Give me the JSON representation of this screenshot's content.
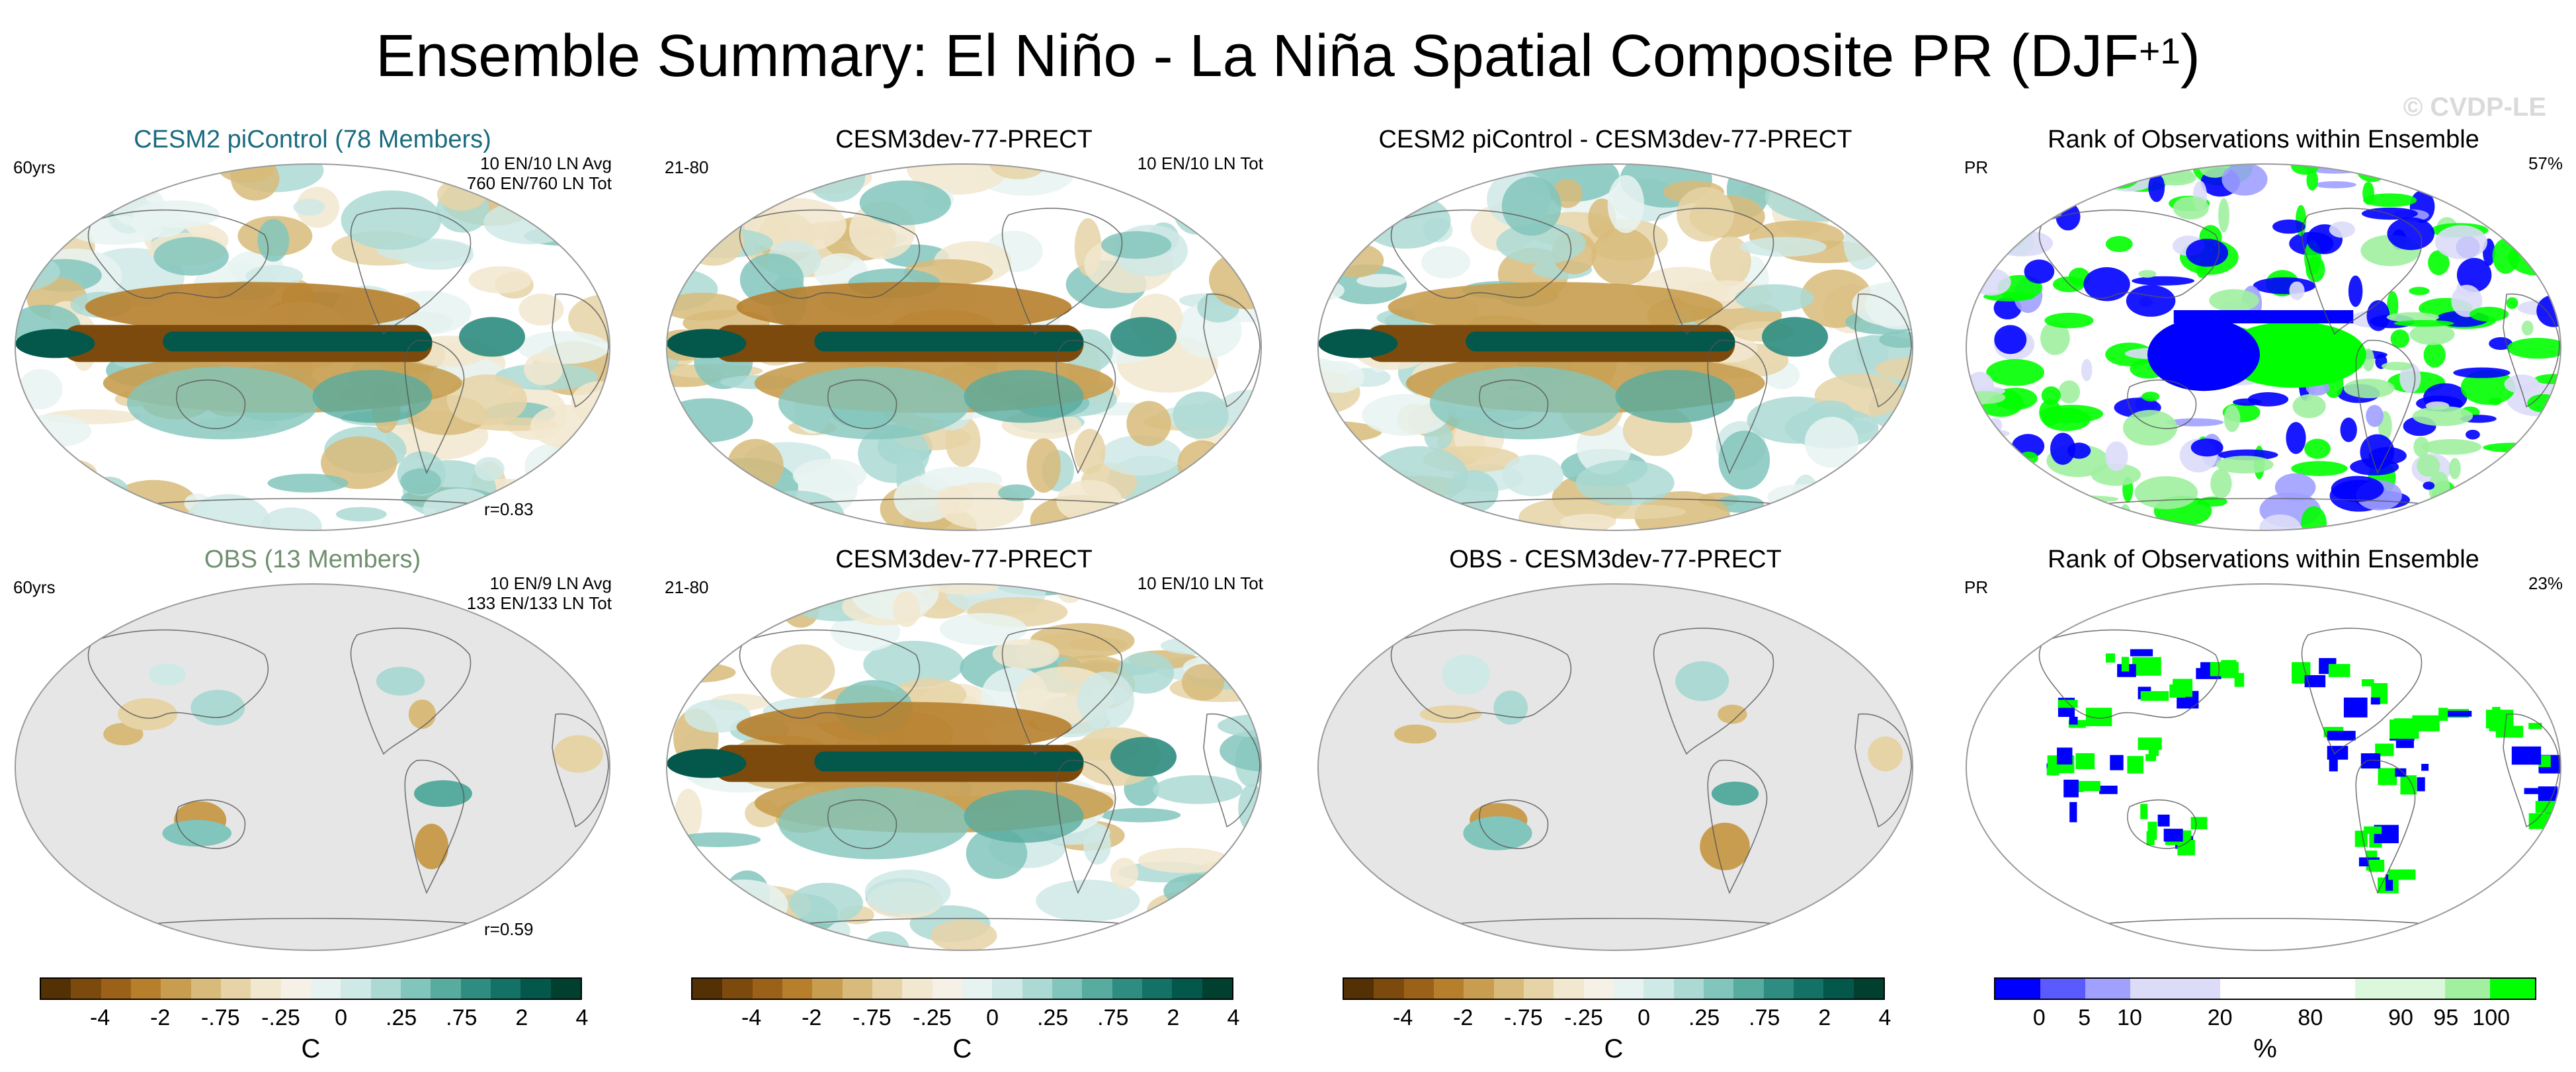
{
  "title": {
    "main": "Ensemble Summary: El Niño - La Niña Spatial Composite PR (DJF",
    "sup": "+1",
    "close": ")"
  },
  "watermark": "© CVDP-LE",
  "panels": [
    {
      "title": "CESM2 piControl (78 Members)",
      "title_color": "#1a6b7f",
      "left": "60yrs",
      "right": [
        "10 EN/10 LN Avg",
        "760 EN/760 LN Tot"
      ],
      "bottom": "r=0.83",
      "style": "div_full"
    },
    {
      "title": "CESM3dev-77-PRECT",
      "title_color": "#000000",
      "left": "21-80",
      "right": [
        "10 EN/10 LN Tot"
      ],
      "bottom": "",
      "style": "div_full2"
    },
    {
      "title": "CESM2 piControl - CESM3dev-77-PRECT",
      "title_color": "#000000",
      "left": "",
      "right": [],
      "bottom": "",
      "style": "div_diff"
    },
    {
      "title": "Rank of Observations within Ensemble",
      "title_color": "#000000",
      "left": "PR",
      "right": [
        "57%"
      ],
      "bottom": "",
      "style": "rank_full"
    },
    {
      "title": "OBS (13 Members)",
      "title_color": "#6f8f6f",
      "left": "60yrs",
      "right": [
        "10 EN/9 LN Avg",
        "133 EN/133 LN Tot"
      ],
      "bottom": "r=0.59",
      "style": "div_land"
    },
    {
      "title": "CESM3dev-77-PRECT",
      "title_color": "#000000",
      "left": "21-80",
      "right": [
        "10 EN/10 LN Tot"
      ],
      "bottom": "",
      "style": "div_full3"
    },
    {
      "title": "OBS - CESM3dev-77-PRECT",
      "title_color": "#000000",
      "left": "",
      "right": [],
      "bottom": "",
      "style": "div_land2"
    },
    {
      "title": "Rank of Observations within Ensemble",
      "title_color": "#000000",
      "left": "PR",
      "right": [
        "23%"
      ],
      "bottom": "",
      "style": "rank_land"
    }
  ],
  "colorbars": [
    {
      "colors": [
        "#543005",
        "#7d4a0d",
        "#9c6118",
        "#b77f2c",
        "#c89d4f",
        "#d8bb7a",
        "#e6d3a6",
        "#f2e8cf",
        "#f6f1e6",
        "#e7f3f1",
        "#cfe9e6",
        "#acd9d3",
        "#82c5bc",
        "#57ab9f",
        "#2e8c80",
        "#137166",
        "#03574b",
        "#01402f"
      ],
      "labels": [
        "-4",
        "-2",
        "-.75",
        "-.25",
        "0",
        ".25",
        ".75",
        "2",
        "4"
      ],
      "label_pos": [
        2,
        4,
        6,
        8,
        10,
        12,
        14,
        16,
        18
      ],
      "unit": "C"
    },
    {
      "colors": [
        "#543005",
        "#7d4a0d",
        "#9c6118",
        "#b77f2c",
        "#c89d4f",
        "#d8bb7a",
        "#e6d3a6",
        "#f2e8cf",
        "#f6f1e6",
        "#e7f3f1",
        "#cfe9e6",
        "#acd9d3",
        "#82c5bc",
        "#57ab9f",
        "#2e8c80",
        "#137166",
        "#03574b",
        "#01402f"
      ],
      "labels": [
        "-4",
        "-2",
        "-.75",
        "-.25",
        "0",
        ".25",
        ".75",
        "2",
        "4"
      ],
      "label_pos": [
        2,
        4,
        6,
        8,
        10,
        12,
        14,
        16,
        18
      ],
      "unit": "C"
    },
    {
      "colors": [
        "#543005",
        "#7d4a0d",
        "#9c6118",
        "#b77f2c",
        "#c89d4f",
        "#d8bb7a",
        "#e6d3a6",
        "#f2e8cf",
        "#f6f1e6",
        "#e7f3f1",
        "#cfe9e6",
        "#acd9d3",
        "#82c5bc",
        "#57ab9f",
        "#2e8c80",
        "#137166",
        "#03574b",
        "#01402f"
      ],
      "labels": [
        "-4",
        "-2",
        "-.75",
        "-.25",
        "0",
        ".25",
        ".75",
        "2",
        "4"
      ],
      "label_pos": [
        2,
        4,
        6,
        8,
        10,
        12,
        14,
        16,
        18
      ],
      "unit": "C"
    },
    {
      "colors": [
        "#0000ff",
        "#5a5aff",
        "#a0a0ff",
        "#dcdcf8",
        "#dcdcf8",
        "#ffffff",
        "#ffffff",
        "#ffffff",
        "#dcf8dc",
        "#dcf8dc",
        "#a0f0a0",
        "#00ff00"
      ],
      "labels": [
        "0",
        "5",
        "10",
        "20",
        "80",
        "90",
        "95",
        "100"
      ],
      "label_pos": [
        1,
        2,
        3,
        5,
        7,
        9,
        10,
        11
      ],
      "unit": "%"
    }
  ]
}
